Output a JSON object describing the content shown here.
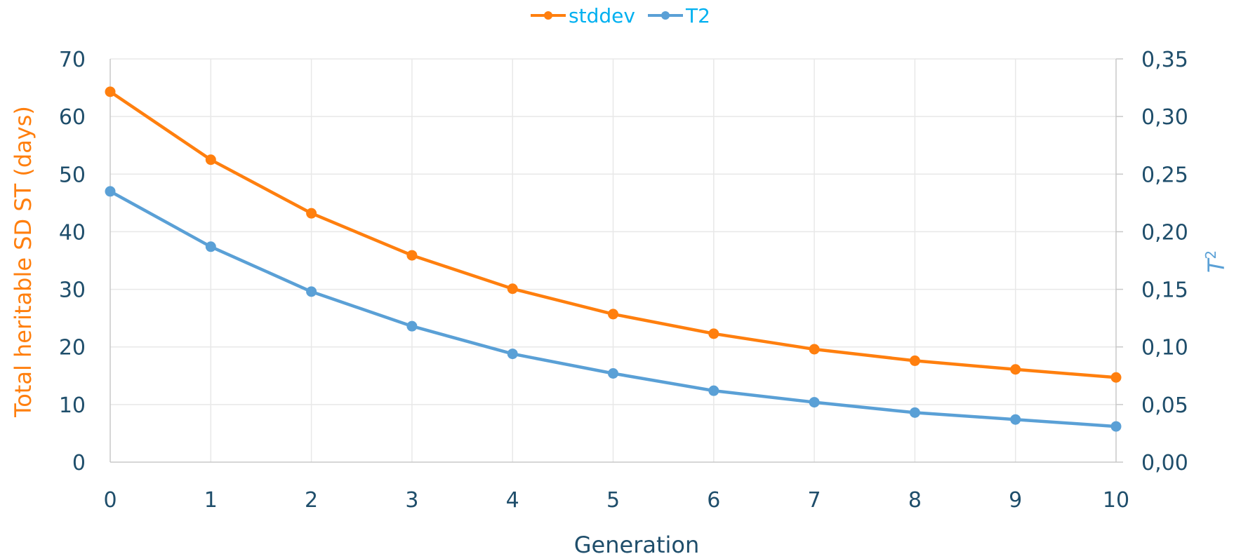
{
  "chart_data": {
    "type": "line",
    "x": [
      0,
      1,
      2,
      3,
      4,
      5,
      6,
      7,
      8,
      9,
      10
    ],
    "series": [
      {
        "name": "stddev",
        "axis": "left",
        "color": "#ff7f0e",
        "values": [
          64.3,
          52.5,
          43.2,
          35.9,
          30.1,
          25.7,
          22.3,
          19.6,
          17.6,
          16.1,
          14.7
        ]
      },
      {
        "name": "T2",
        "axis": "right",
        "color": "#5aa0d6",
        "values": [
          0.235,
          0.187,
          0.148,
          0.118,
          0.094,
          0.077,
          0.062,
          0.052,
          0.043,
          0.037,
          0.031
        ]
      }
    ],
    "xlabel": "Generation",
    "ylabel_left": "Total heritable SD ST (days)",
    "ylabel_right_base": "T",
    "ylabel_right_sup": "2",
    "xlim": [
      0,
      10
    ],
    "ylim_left": [
      0,
      70
    ],
    "ylim_right": [
      0,
      0.35
    ],
    "xticks": [
      "0",
      "1",
      "2",
      "3",
      "4",
      "5",
      "6",
      "7",
      "8",
      "9",
      "10"
    ],
    "yticks_left": [
      "0",
      "10",
      "20",
      "30",
      "40",
      "50",
      "60",
      "70"
    ],
    "yticks_right": [
      "0,00",
      "0,05",
      "0,10",
      "0,15",
      "0,20",
      "0,25",
      "0,30",
      "0,35"
    ],
    "grid": true,
    "legend_position": "top-center",
    "colors": {
      "tick_text": "#1f4e6b",
      "left_axis_title": "#ff7f0e",
      "right_axis_title": "#5aa0d6",
      "legend_text": "#00b0f0",
      "grid": "#e8e8e8",
      "axis_line": "#c8c8c8"
    }
  }
}
